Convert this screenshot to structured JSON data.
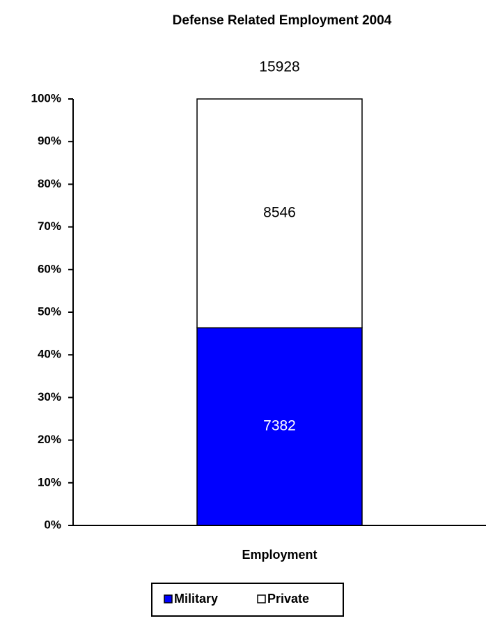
{
  "chart_data": {
    "type": "bar",
    "stacking": "percent",
    "title": "Defense Related Employment 2004",
    "categories": [
      "Employment"
    ],
    "total": 15928,
    "series": [
      {
        "name": "Military",
        "color": "#0000ff",
        "label_color": "#ffffff",
        "values": [
          7382
        ]
      },
      {
        "name": "Private",
        "color": "#ffffff",
        "label_color": "#000000",
        "values": [
          8546
        ]
      }
    ],
    "ylim": [
      0,
      100
    ],
    "yticks": [
      {
        "value": 0,
        "label": "0%"
      },
      {
        "value": 10,
        "label": "10%"
      },
      {
        "value": 20,
        "label": "20%"
      },
      {
        "value": 30,
        "label": "30%"
      },
      {
        "value": 40,
        "label": "40%"
      },
      {
        "value": 50,
        "label": "50%"
      },
      {
        "value": 60,
        "label": "60%"
      },
      {
        "value": 70,
        "label": "70%"
      },
      {
        "value": 80,
        "label": "80%"
      },
      {
        "value": 90,
        "label": "90%"
      },
      {
        "value": 100,
        "label": "100%"
      }
    ],
    "grid": false,
    "legend": "bottom"
  }
}
